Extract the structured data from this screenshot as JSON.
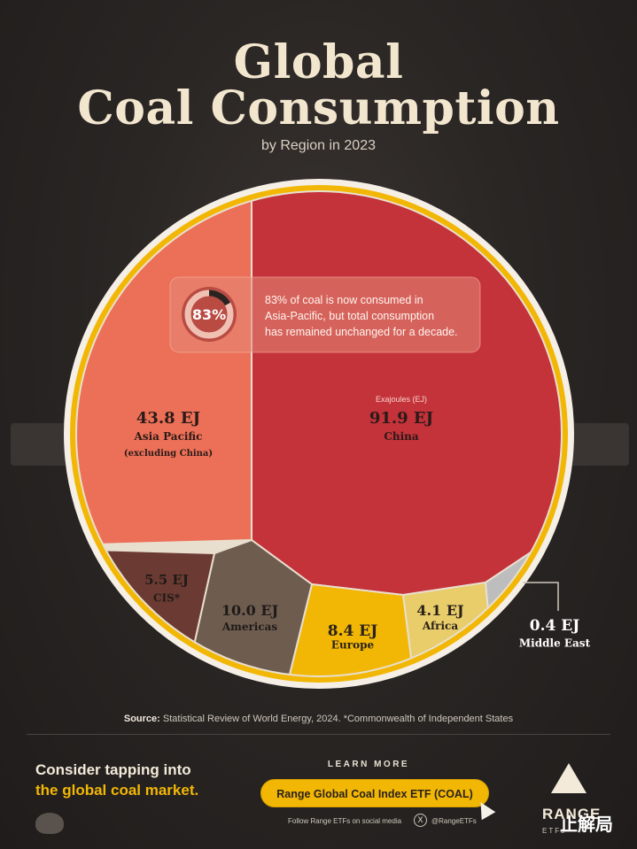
{
  "header": {
    "title_line1": "Global",
    "title_line2": "Coal Consumption",
    "subtitle": "by Region in 2023"
  },
  "callout": {
    "percent": "83%",
    "percent_value": 83,
    "text_line1": "83% of coal is now consumed in",
    "text_line2": "Asia-Pacific, but total consumption",
    "text_line3": "has remained unchanged for a decade."
  },
  "chart_data": {
    "type": "pie",
    "title": "Global Coal Consumption",
    "subtitle": "by Region in 2023",
    "unit_label": "Exajoules (EJ)",
    "slices": [
      {
        "name": "China",
        "value": 91.9,
        "value_label": "91.9 EJ",
        "color": "#c4323a"
      },
      {
        "name": "Middle East",
        "value": 0.4,
        "value_label": "0.4 EJ",
        "color": "#bdbdbd"
      },
      {
        "name": "Africa",
        "value": 4.1,
        "value_label": "4.1 EJ",
        "color": "#e8cd6a"
      },
      {
        "name": "Europe",
        "value": 8.4,
        "value_label": "8.4 EJ",
        "color": "#f2b705"
      },
      {
        "name": "Americas",
        "value": 10.0,
        "value_label": "10.0 EJ",
        "color": "#6e5c4f"
      },
      {
        "name": "CIS*",
        "value": 5.5,
        "value_label": "5.5 EJ",
        "color": "#6b3a32"
      },
      {
        "name": "Asia Pacific",
        "sublabel": "(excluding China)",
        "value": 43.8,
        "value_label": "43.8 EJ",
        "color": "#ec7057"
      }
    ]
  },
  "footer": {
    "source_label": "Source:",
    "source_text": " Statistical Review of World Energy, 2024. *Commonwealth of Independent States",
    "cta_line1": "Consider tapping into",
    "cta_line2": "the global coal market.",
    "learn_more": "LEARN MORE",
    "button_label": "Range Global Coal Index ETF (COAL)",
    "social_text": "Follow Range ETFs on social media",
    "x_glyph": "X",
    "handle": "@RangeETFs",
    "brand": "RANGE",
    "brand_sub": "ETFs",
    "watermark": "止解局"
  },
  "colors": {
    "background": "#2a2624",
    "ring": "#f2b705",
    "accent": "#f2b705",
    "title": "#f2e6cf"
  }
}
